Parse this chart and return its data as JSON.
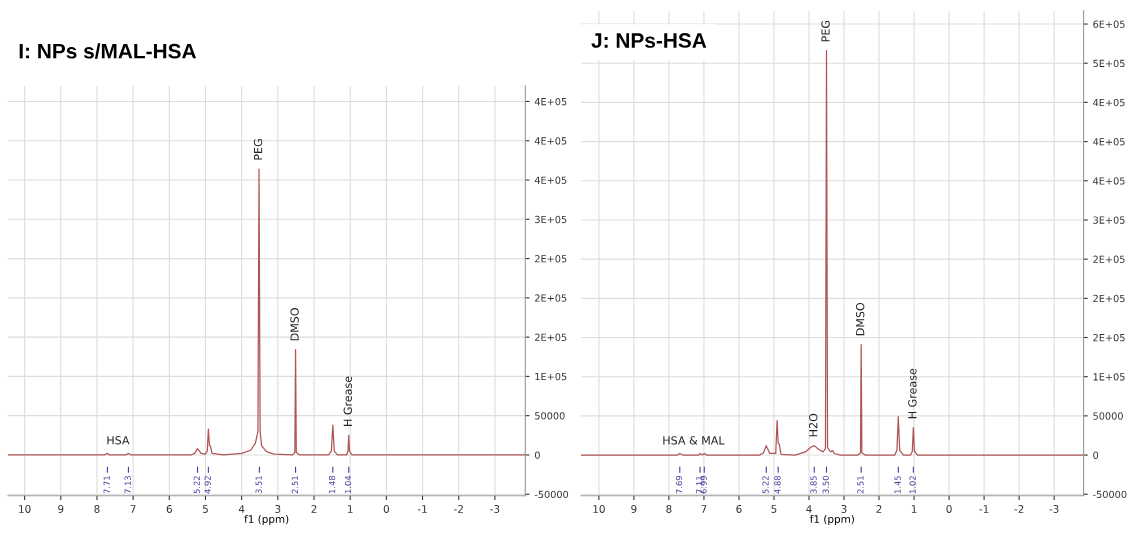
{
  "chart_data": [
    {
      "type": "line",
      "title": "I: NPs s/MAL-HSA",
      "xlabel": "f1 (ppm)",
      "series": [
        {
          "color": "#b05555",
          "x": [
            10.45,
            7.8,
            7.71,
            7.65,
            7.2,
            7.13,
            7.05,
            5.4,
            5.3,
            5.22,
            5.12,
            5.0,
            4.95,
            4.92,
            4.89,
            4.86,
            4.82,
            4.5,
            4.0,
            3.75,
            3.62,
            3.55,
            3.52,
            3.49,
            3.45,
            3.35,
            3.3,
            3.1,
            2.6,
            2.53,
            2.51,
            2.49,
            2.4,
            1.6,
            1.52,
            1.48,
            1.44,
            1.35,
            1.1,
            1.06,
            1.04,
            1.02,
            0.95,
            -3.84
          ],
          "values": [
            0,
            0,
            2000,
            0,
            0,
            2000,
            0,
            0,
            2000,
            8000,
            2000,
            1000,
            5000,
            33000,
            12000,
            11000,
            2000,
            0,
            2000,
            6000,
            15000,
            30000,
            364000,
            30000,
            12000,
            6000,
            4000,
            1000,
            0,
            3000,
            134000,
            3000,
            0,
            0,
            5000,
            38000,
            5000,
            0,
            0,
            5000,
            25000,
            5000,
            0,
            0
          ]
        }
      ],
      "xlim": [
        10.46,
        -3.84
      ],
      "xticks": [
        10,
        9,
        8,
        7,
        6,
        5,
        4,
        3,
        2,
        1,
        0,
        -1,
        -2,
        -3
      ],
      "ylim": [
        -52000,
        470000
      ],
      "yticks": [
        -50000,
        0,
        50000,
        {
          "value": 100000,
          "label": "1E+05"
        },
        {
          "value": 150000,
          "label": "2E+05"
        },
        {
          "value": 200000,
          "label": "2E+05"
        },
        {
          "value": 250000,
          "label": "2E+05"
        },
        {
          "value": 300000,
          "label": "3E+05"
        },
        {
          "value": 350000,
          "label": "4E+05"
        },
        {
          "value": 400000,
          "label": "4E+05"
        },
        {
          "value": 450000,
          "label": "4E+05"
        }
      ],
      "grid": true,
      "ref_lines": [
        {
          "axis": "x",
          "value": 7.71,
          "label": "7.71",
          "color": "#4040a0"
        },
        {
          "axis": "x",
          "value": 7.13,
          "label": "7.13",
          "color": "#4040a0"
        },
        {
          "axis": "x",
          "value": 5.22,
          "label": "5.22",
          "color": "#4040a0"
        },
        {
          "axis": "x",
          "value": 4.92,
          "label": "4.92",
          "color": "#4040a0"
        },
        {
          "axis": "x",
          "value": 3.51,
          "label": "3.51",
          "color": "#4040a0"
        },
        {
          "axis": "x",
          "value": 2.51,
          "label": "2.51",
          "color": "#4040a0"
        },
        {
          "axis": "x",
          "value": 1.48,
          "label": "1.48",
          "color": "#4040a0"
        },
        {
          "axis": "x",
          "value": 1.04,
          "label": "1.04",
          "color": "#4040a0"
        }
      ],
      "annotations": [
        {
          "text": "PEG",
          "x": 3.52,
          "y": 364000
        },
        {
          "text": "DMSO",
          "x": 2.51,
          "y": 134000
        },
        {
          "text": "H Grease",
          "x": 1.04,
          "y": 25000
        },
        {
          "text": "HSA",
          "x": 7.42,
          "y": 0
        }
      ]
    },
    {
      "type": "line",
      "title": "J: NPs-HSA",
      "xlabel": "f1 (ppm)",
      "series": [
        {
          "color": "#b05555",
          "x": [
            10.5,
            7.75,
            7.69,
            7.6,
            7.15,
            7.11,
            7.05,
            6.99,
            6.93,
            5.4,
            5.3,
            5.22,
            5.12,
            4.95,
            4.91,
            4.88,
            4.85,
            4.8,
            4.4,
            4.1,
            3.95,
            3.85,
            3.72,
            3.6,
            3.53,
            3.5,
            3.47,
            3.42,
            3.38,
            3.33,
            3.28,
            3.1,
            2.6,
            2.53,
            2.51,
            2.49,
            2.4,
            1.55,
            1.49,
            1.45,
            1.41,
            1.3,
            1.1,
            1.05,
            1.02,
            0.99,
            0.9,
            -3.84
          ],
          "values": [
            0,
            0,
            2000,
            0,
            0,
            2000,
            0,
            2000,
            0,
            0,
            3000,
            12000,
            2000,
            2000,
            44000,
            15000,
            14000,
            1000,
            0,
            4000,
            10000,
            12000,
            7000,
            4000,
            8000,
            516000,
            10000,
            6000,
            4000,
            6000,
            2000,
            0,
            0,
            3000,
            141000,
            3000,
            0,
            0,
            6000,
            49000,
            6000,
            0,
            0,
            5000,
            35000,
            5000,
            0,
            0
          ]
        }
      ],
      "xlim": [
        10.51,
        -3.84
      ],
      "xticks": [
        10,
        9,
        8,
        7,
        6,
        5,
        4,
        3,
        2,
        1,
        0,
        -1,
        -2,
        -3
      ],
      "ylim": [
        -52000,
        567000
      ],
      "yticks": [
        -50000,
        0,
        50000,
        {
          "value": 100000,
          "label": "1E+05"
        },
        {
          "value": 150000,
          "label": "2E+05"
        },
        {
          "value": 200000,
          "label": "2E+05"
        },
        {
          "value": 250000,
          "label": "2E+05"
        },
        {
          "value": 300000,
          "label": "3E+05"
        },
        {
          "value": 350000,
          "label": "4E+05"
        },
        {
          "value": 400000,
          "label": "4E+05"
        },
        {
          "value": 450000,
          "label": "4E+05"
        },
        {
          "value": 500000,
          "label": "5E+05"
        },
        {
          "value": 550000,
          "label": "6E+05"
        }
      ],
      "grid": true,
      "ref_lines": [
        {
          "axis": "x",
          "value": 7.69,
          "label": "7.69",
          "color": "#4040a0"
        },
        {
          "axis": "x",
          "value": 7.11,
          "label": "7.11",
          "color": "#4040a0"
        },
        {
          "axis": "x",
          "value": 6.99,
          "label": "6.99",
          "color": "#4040a0"
        },
        {
          "axis": "x",
          "value": 5.22,
          "label": "5.22",
          "color": "#4040a0"
        },
        {
          "axis": "x",
          "value": 4.88,
          "label": "4.88",
          "color": "#4040a0"
        },
        {
          "axis": "x",
          "value": 3.85,
          "label": "3.85",
          "color": "#4040a0"
        },
        {
          "axis": "x",
          "value": 3.5,
          "label": "3.50",
          "color": "#4040a0"
        },
        {
          "axis": "x",
          "value": 2.51,
          "label": "2.51",
          "color": "#4040a0"
        },
        {
          "axis": "x",
          "value": 1.45,
          "label": "1.45",
          "color": "#4040a0"
        },
        {
          "axis": "x",
          "value": 1.02,
          "label": "1.02",
          "color": "#4040a0"
        }
      ],
      "annotations": [
        {
          "text": "PEG",
          "x": 3.5,
          "y": 516000
        },
        {
          "text": "DMSO",
          "x": 2.51,
          "y": 141000
        },
        {
          "text": "H Grease",
          "x": 1.02,
          "y": 35000
        },
        {
          "text": "H2O",
          "x": 3.85,
          "y": 12000
        },
        {
          "text": "HSA & MAL",
          "x": 7.3,
          "y": 0
        }
      ]
    }
  ]
}
